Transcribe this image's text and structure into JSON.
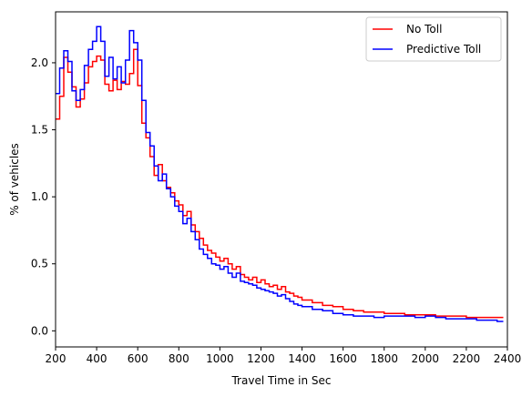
{
  "chart_data": {
    "type": "line",
    "step": true,
    "xlabel": "Travel Time in Sec",
    "ylabel": "% of vehicles",
    "xlim": [
      200,
      2400
    ],
    "ylim": [
      -0.12,
      2.38
    ],
    "xticks": [
      200,
      400,
      600,
      800,
      1000,
      1200,
      1400,
      1600,
      1800,
      2000,
      2200,
      2400
    ],
    "yticks": [
      0.0,
      0.5,
      1.0,
      1.5,
      2.0
    ],
    "xtick_labels": [
      "200",
      "400",
      "600",
      "800",
      "1000",
      "1200",
      "1400",
      "1600",
      "1800",
      "2000",
      "2200",
      "2400"
    ],
    "ytick_labels": [
      "0.0",
      "0.5",
      "1.0",
      "1.5",
      "2.0"
    ],
    "legend": {
      "position": "top-right",
      "entries": [
        "No Toll",
        "Predictive Toll"
      ]
    },
    "grid": false,
    "series": [
      {
        "name": "No Toll",
        "color": "#ff0000",
        "x": [
          200,
          220,
          240,
          260,
          280,
          300,
          320,
          340,
          360,
          380,
          400,
          420,
          440,
          460,
          480,
          500,
          520,
          540,
          560,
          580,
          600,
          620,
          640,
          660,
          680,
          700,
          720,
          740,
          760,
          780,
          800,
          820,
          840,
          860,
          880,
          900,
          920,
          940,
          960,
          980,
          1000,
          1020,
          1040,
          1060,
          1080,
          1100,
          1120,
          1140,
          1160,
          1180,
          1200,
          1220,
          1240,
          1260,
          1280,
          1300,
          1320,
          1340,
          1360,
          1380,
          1400,
          1450,
          1500,
          1550,
          1600,
          1650,
          1700,
          1750,
          1800,
          1850,
          1900,
          1950,
          2000,
          2050,
          2100,
          2150,
          2200,
          2250,
          2300,
          2350
        ],
        "y": [
          1.58,
          1.75,
          2.04,
          1.93,
          1.82,
          1.67,
          1.73,
          1.85,
          1.97,
          2.01,
          2.05,
          2.02,
          1.84,
          1.79,
          1.87,
          1.8,
          1.86,
          1.84,
          1.92,
          2.1,
          1.83,
          1.55,
          1.44,
          1.3,
          1.16,
          1.24,
          1.12,
          1.07,
          1.03,
          0.97,
          0.94,
          0.86,
          0.89,
          0.79,
          0.74,
          0.69,
          0.64,
          0.6,
          0.58,
          0.55,
          0.52,
          0.54,
          0.5,
          0.46,
          0.48,
          0.42,
          0.4,
          0.38,
          0.4,
          0.36,
          0.38,
          0.35,
          0.33,
          0.34,
          0.31,
          0.33,
          0.29,
          0.28,
          0.26,
          0.25,
          0.23,
          0.21,
          0.19,
          0.18,
          0.16,
          0.15,
          0.14,
          0.14,
          0.13,
          0.13,
          0.12,
          0.12,
          0.12,
          0.11,
          0.11,
          0.11,
          0.1,
          0.1,
          0.1,
          0.1
        ]
      },
      {
        "name": "Predictive Toll",
        "color": "#0000ff",
        "x": [
          200,
          220,
          240,
          260,
          280,
          300,
          320,
          340,
          360,
          380,
          400,
          420,
          440,
          460,
          480,
          500,
          520,
          540,
          560,
          580,
          600,
          620,
          640,
          660,
          680,
          700,
          720,
          740,
          760,
          780,
          800,
          820,
          840,
          860,
          880,
          900,
          920,
          940,
          960,
          980,
          1000,
          1020,
          1040,
          1060,
          1080,
          1100,
          1120,
          1140,
          1160,
          1180,
          1200,
          1220,
          1240,
          1260,
          1280,
          1300,
          1320,
          1340,
          1360,
          1380,
          1400,
          1450,
          1500,
          1550,
          1600,
          1650,
          1700,
          1750,
          1800,
          1850,
          1900,
          1950,
          2000,
          2050,
          2100,
          2150,
          2200,
          2250,
          2300,
          2350
        ],
        "y": [
          1.77,
          1.96,
          2.09,
          2.01,
          1.79,
          1.72,
          1.8,
          1.98,
          2.1,
          2.16,
          2.27,
          2.16,
          1.9,
          2.04,
          1.88,
          1.97,
          1.85,
          2.02,
          2.24,
          2.15,
          2.02,
          1.72,
          1.48,
          1.38,
          1.23,
          1.12,
          1.17,
          1.06,
          1.0,
          0.93,
          0.89,
          0.8,
          0.84,
          0.74,
          0.68,
          0.61,
          0.57,
          0.54,
          0.5,
          0.49,
          0.46,
          0.48,
          0.43,
          0.4,
          0.43,
          0.37,
          0.36,
          0.35,
          0.34,
          0.32,
          0.31,
          0.3,
          0.29,
          0.28,
          0.26,
          0.27,
          0.24,
          0.22,
          0.2,
          0.19,
          0.18,
          0.16,
          0.15,
          0.13,
          0.12,
          0.11,
          0.11,
          0.1,
          0.11,
          0.11,
          0.11,
          0.1,
          0.11,
          0.1,
          0.09,
          0.09,
          0.09,
          0.08,
          0.08,
          0.07
        ]
      }
    ]
  }
}
